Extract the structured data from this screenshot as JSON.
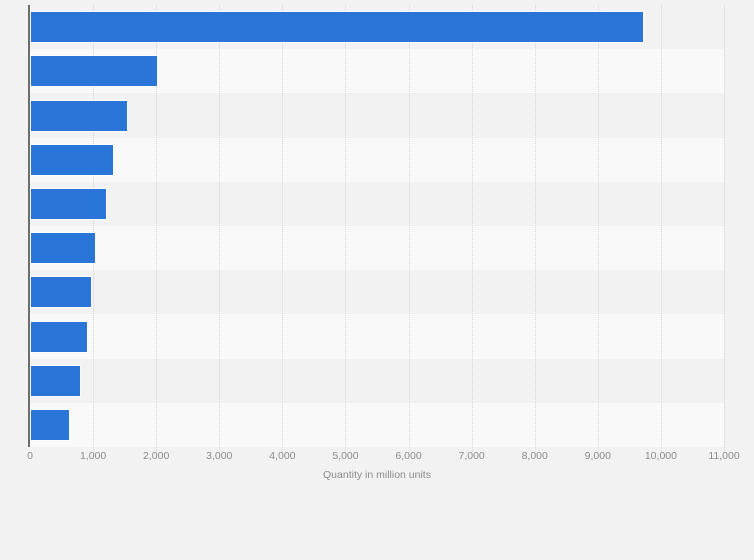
{
  "page": {
    "background_color": "#f2f2f2"
  },
  "chart_data": {
    "type": "bar",
    "orientation": "horizontal",
    "title": "",
    "categories": [
      "",
      "",
      "",
      "",
      "",
      "",
      "",
      "",
      "",
      ""
    ],
    "values": [
      9700,
      2000,
      1520,
      1300,
      1190,
      1010,
      950,
      890,
      780,
      600
    ],
    "xlabel": "Quantity in million units",
    "ylabel": "",
    "xlim": [
      0,
      11000
    ],
    "x_ticks": [
      0,
      1000,
      2000,
      3000,
      4000,
      5000,
      6000,
      7000,
      8000,
      9000,
      10000,
      11000
    ],
    "x_tick_labels": [
      "0",
      "1,000",
      "2,000",
      "3,000",
      "4,000",
      "5,000",
      "6,000",
      "7,000",
      "8,000",
      "9,000",
      "10,000",
      "11,000"
    ],
    "grid": "vertical-dotted-per-1000",
    "legend": "none",
    "colors": {
      "bar": "#2a76d8",
      "bar_edge": "#dbe5f4",
      "band_light": "#f9f9f9",
      "band_dark": "#f2f2f2",
      "gridline": "#d7d7d7",
      "axis_line": "#6e6e6e",
      "tick_text": "#8b8b8b",
      "axis_label_text": "#8b8b8b"
    }
  }
}
